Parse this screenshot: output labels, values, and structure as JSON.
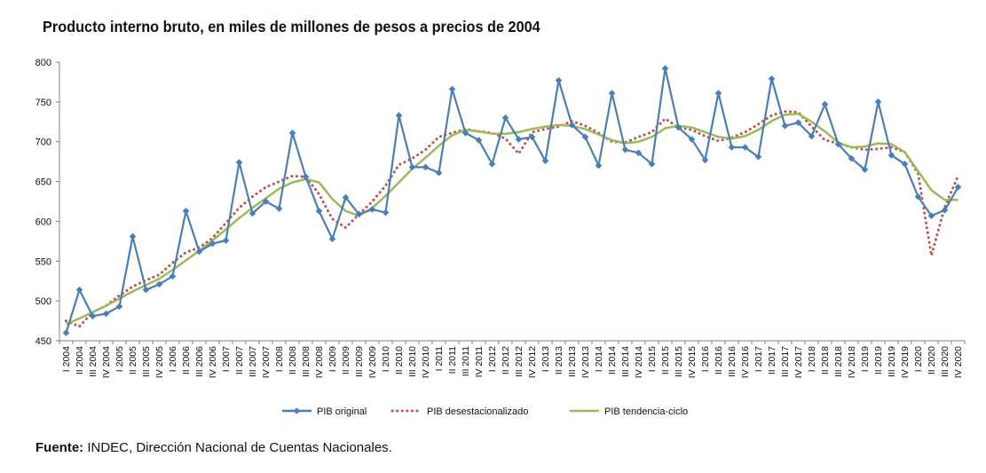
{
  "chart_data": {
    "type": "line",
    "title": "Producto interno bruto, en miles de millones de pesos a precios de 2004",
    "xlabel": "",
    "ylabel": "",
    "ylim": [
      450,
      800
    ],
    "yticks": [
      450,
      500,
      550,
      600,
      650,
      700,
      750,
      800
    ],
    "grid": false,
    "legend_position": "bottom",
    "categories": [
      "I 2004",
      "II 2004",
      "III 2004",
      "IV 2004",
      "I 2005",
      "II 2005",
      "III 2005",
      "IV 2005",
      "I 2006",
      "II 2006",
      "III 2006",
      "IV 2006",
      "I 2007",
      "II 2007",
      "III 2007",
      "IV 2007",
      "I 2008",
      "II 2008",
      "III 2008",
      "IV 2008",
      "I 2009",
      "II 2009",
      "III 2009",
      "IV 2009",
      "I 2010",
      "II 2010",
      "III 2010",
      "IV 2010",
      "I 2011",
      "II 2011",
      "III 2011",
      "IV 2011",
      "I 2012",
      "II 2012",
      "III 2012",
      "IV 2012",
      "I 2013",
      "II 2013",
      "III 2013",
      "IV 2013",
      "I 2014",
      "II 2014",
      "III 2014",
      "IV 2014",
      "I 2015",
      "II 2015",
      "III 2015",
      "IV 2015",
      "I 2016",
      "II 2016",
      "III 2016",
      "IV 2016",
      "I 2017",
      "II 2017",
      "III 2017",
      "IV 2017",
      "I 2018",
      "II 2018",
      "III 2018",
      "IV 2018",
      "I 2019",
      "II 2019",
      "III 2019",
      "IV 2019",
      "I 2020",
      "II 2020",
      "III 2020",
      "IV 2020"
    ],
    "series": [
      {
        "name": "PIB original",
        "color": "#4a7ebb",
        "style": "solid-diamond",
        "values": [
          460,
          514,
          481,
          484,
          493,
          581,
          514,
          521,
          531,
          613,
          562,
          572,
          576,
          674,
          610,
          625,
          616,
          711,
          656,
          613,
          578,
          630,
          609,
          615,
          611,
          733,
          668,
          668,
          661,
          766,
          711,
          702,
          672,
          730,
          703,
          706,
          676,
          777,
          721,
          706,
          670,
          761,
          690,
          686,
          672,
          792,
          718,
          703,
          677,
          761,
          693,
          693,
          681,
          779,
          720,
          724,
          707,
          747,
          697,
          679,
          665,
          750,
          683,
          672,
          631,
          607,
          614,
          643
        ]
      },
      {
        "name": "PIB desestacionalizado",
        "color": "#c0504d",
        "style": "dotted",
        "values": [
          475,
          468,
          486,
          494,
          507,
          518,
          526,
          533,
          548,
          561,
          567,
          579,
          598,
          617,
          631,
          643,
          650,
          657,
          656,
          634,
          603,
          592,
          609,
          625,
          645,
          671,
          679,
          690,
          706,
          711,
          716,
          713,
          711,
          704,
          685,
          712,
          716,
          719,
          726,
          720,
          711,
          700,
          699,
          706,
          712,
          729,
          718,
          715,
          707,
          701,
          705,
          712,
          722,
          733,
          738,
          737,
          719,
          702,
          698,
          693,
          690,
          691,
          693,
          687,
          660,
          557,
          618,
          657
        ]
      },
      {
        "name": "PIB tendencia-ciclo",
        "color": "#9bbb59",
        "style": "solid",
        "values": [
          471,
          478,
          486,
          494,
          503,
          512,
          520,
          528,
          539,
          551,
          563,
          576,
          590,
          604,
          617,
          629,
          641,
          649,
          653,
          649,
          628,
          613,
          607,
          617,
          632,
          649,
          666,
          680,
          695,
          708,
          715,
          713,
          710,
          710,
          712,
          716,
          719,
          721,
          720,
          716,
          709,
          702,
          698,
          700,
          706,
          717,
          720,
          718,
          712,
          706,
          704,
          707,
          715,
          726,
          734,
          735,
          725,
          713,
          699,
          693,
          694,
          698,
          697,
          687,
          663,
          639,
          627,
          627
        ]
      }
    ]
  },
  "footer": {
    "label": "Fuente:",
    "text": " INDEC, Dirección Nacional de Cuentas Nacionales."
  }
}
